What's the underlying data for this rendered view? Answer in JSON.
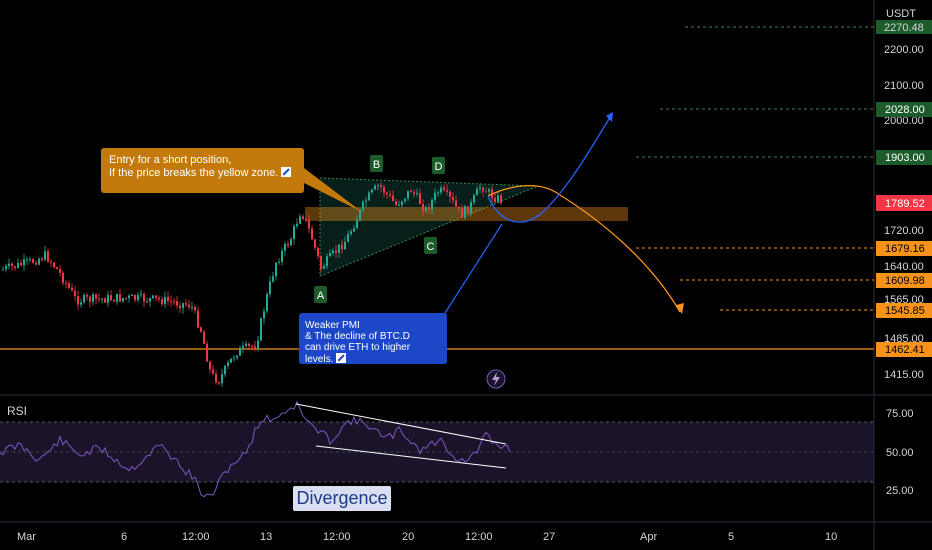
{
  "chart_data": {
    "type": "line",
    "symbol_currency": "USDT",
    "price_axis": {
      "ticks": [
        "2200.00",
        "2100.00",
        "2000.00",
        "1720.00",
        "1640.00",
        "1565.00",
        "1485.00",
        "1415.00"
      ],
      "ticks_partial": [
        "2270.48"
      ]
    },
    "price_labels": [
      {
        "value": "2028.00",
        "kind": "target"
      },
      {
        "value": "1903.00",
        "kind": "target"
      },
      {
        "value": "1789.52",
        "kind": "current"
      },
      {
        "value": "1679.16",
        "kind": "target_down"
      },
      {
        "value": "1609.98",
        "kind": "target_down"
      },
      {
        "value": "1545.85",
        "kind": "target_down"
      },
      {
        "value": "1462.41",
        "kind": "level"
      }
    ],
    "time_axis": [
      "Mar",
      "6",
      "12:00",
      "13",
      "12:00",
      "20",
      "12:00",
      "27",
      "Apr",
      "5",
      "10"
    ],
    "pattern_points": [
      "A",
      "B",
      "C",
      "D"
    ],
    "rsi": {
      "title": "RSI",
      "ticks": [
        "75.00",
        "50.00",
        "25.00"
      ],
      "upper_band": 70,
      "lower_band": 30,
      "annotation": "Divergence"
    },
    "annotations": {
      "short_note": [
        "Entry for a short position,",
        "If the price breaks the yellow zone."
      ],
      "pmi_note": [
        "Weaker PMI",
        "& The decline of BTC.D",
        "can drive ETH to higher levels."
      ]
    }
  },
  "colors": {
    "up": "#22ab94",
    "down": "#f23645",
    "orange": "#f7931a",
    "blue": "#2962ff",
    "green_label": "#1e5b2b",
    "rsi_line": "#7e57c2"
  },
  "icons": [
    "lightning-icon",
    "edit-icon"
  ]
}
